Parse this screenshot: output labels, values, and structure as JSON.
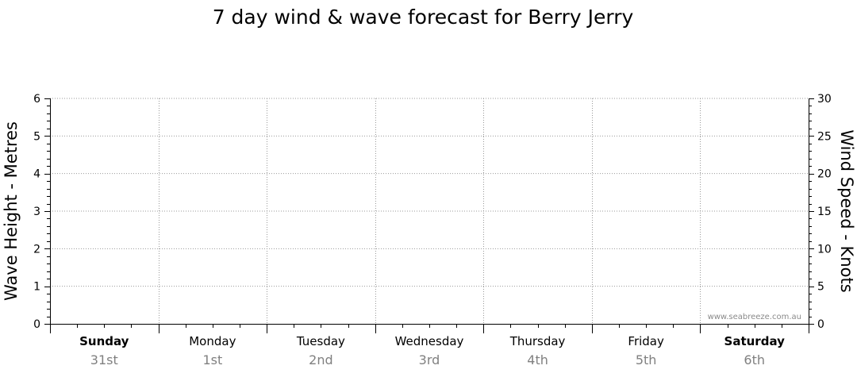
{
  "chart_data": {
    "type": "line",
    "title": "7 day wind & wave forecast for Berry Jerry",
    "ylabel_left": "Wave Height - Metres",
    "ylabel_right": "Wind Speed - Knots",
    "y_left_range": [
      0,
      6
    ],
    "y_left_ticks": [
      "0",
      "1",
      "2",
      "3",
      "4",
      "5",
      "6"
    ],
    "y_right_range": [
      0,
      30
    ],
    "y_right_ticks": [
      "0",
      "5",
      "10",
      "15",
      "20",
      "25",
      "30"
    ],
    "days": [
      {
        "name": "Sunday",
        "date": "31st",
        "weekend": true
      },
      {
        "name": "Monday",
        "date": "1st",
        "weekend": false
      },
      {
        "name": "Tuesday",
        "date": "2nd",
        "weekend": false
      },
      {
        "name": "Wednesday",
        "date": "3rd",
        "weekend": false
      },
      {
        "name": "Thursday",
        "date": "4th",
        "weekend": false
      },
      {
        "name": "Friday",
        "date": "5th",
        "weekend": false
      },
      {
        "name": "Saturday",
        "date": "6th",
        "weekend": true
      }
    ],
    "grid": true,
    "series": []
  },
  "watermark": "www.seabreeze.com.au"
}
